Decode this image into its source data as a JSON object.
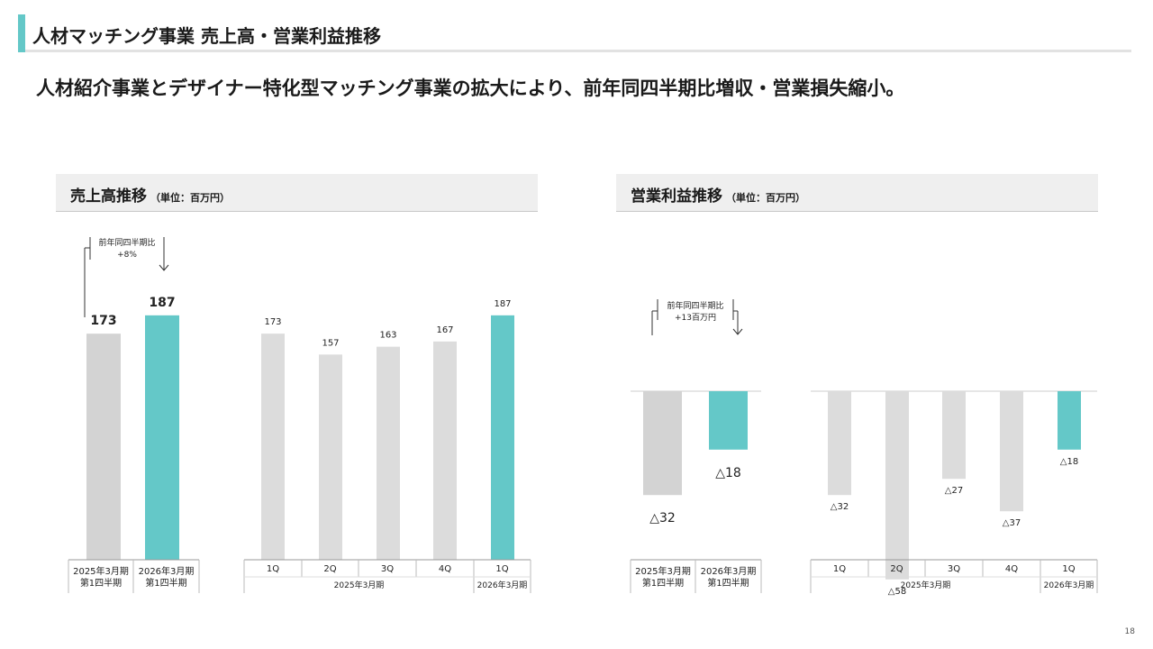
{
  "page": {
    "title": "人材マッチング事業 売上高・営業利益推移",
    "headline": "人材紹介事業とデザイナー特化型マッチング事業の拡大により、前年同四半期比増収・営業損失縮小。",
    "page_number": "18"
  },
  "colors": {
    "accent": "#64c8c8",
    "bar_prior": "#d3d3d3",
    "bar_quarter": "#dcdcdc"
  },
  "panels": {
    "sales": {
      "title": "売上高推移",
      "unit": "（単位：百万円）"
    },
    "profit": {
      "title": "営業利益推移",
      "unit": "（単位：百万円）"
    }
  },
  "chart_data": [
    {
      "type": "bar",
      "categories": [
        "2025年3月期 第1四半期",
        "2026年3月期 第1四半期"
      ],
      "values": [
        173,
        187
      ],
      "value_labels": [
        "173",
        "187"
      ],
      "highlight": [
        false,
        true
      ],
      "category_labels": [
        [
          "2025年3月期",
          "第1四半期"
        ],
        [
          "2026年3月期",
          "第1四半期"
        ]
      ],
      "annotation": {
        "line1": "前年同四半期比",
        "line2": "+8%"
      },
      "ylim": [
        0,
        200
      ]
    },
    {
      "type": "bar",
      "categories": [
        "1Q",
        "2Q",
        "3Q",
        "4Q",
        "1Q"
      ],
      "values": [
        173,
        157,
        163,
        167,
        187
      ],
      "value_labels": [
        "173",
        "157",
        "163",
        "167",
        "187"
      ],
      "highlight": [
        false,
        false,
        false,
        false,
        true
      ],
      "groups": [
        {
          "label": "2025年3月期",
          "span": 4
        },
        {
          "label": "2026年3月期",
          "span": 1
        }
      ],
      "ylim": [
        0,
        200
      ]
    },
    {
      "type": "bar",
      "categories": [
        "2025年3月期 第1四半期",
        "2026年3月期 第1四半期"
      ],
      "values": [
        -32,
        -18
      ],
      "value_labels": [
        "△32",
        "△18"
      ],
      "highlight": [
        false,
        true
      ],
      "category_labels": [
        [
          "2025年3月期",
          "第1四半期"
        ],
        [
          "2026年3月期",
          "第1四半期"
        ]
      ],
      "annotation": {
        "line1": "前年同四半期比",
        "line2": "+13百万円"
      },
      "ylim": [
        -60,
        0
      ]
    },
    {
      "type": "bar",
      "categories": [
        "1Q",
        "2Q",
        "3Q",
        "4Q",
        "1Q"
      ],
      "values": [
        -32,
        -58,
        -27,
        -37,
        -18
      ],
      "value_labels": [
        "△32",
        "△58",
        "△27",
        "△37",
        "△18"
      ],
      "highlight": [
        false,
        false,
        false,
        false,
        true
      ],
      "groups": [
        {
          "label": "2025年3月期",
          "span": 4
        },
        {
          "label": "2026年3月期",
          "span": 1
        }
      ],
      "ylim": [
        -60,
        0
      ]
    }
  ]
}
